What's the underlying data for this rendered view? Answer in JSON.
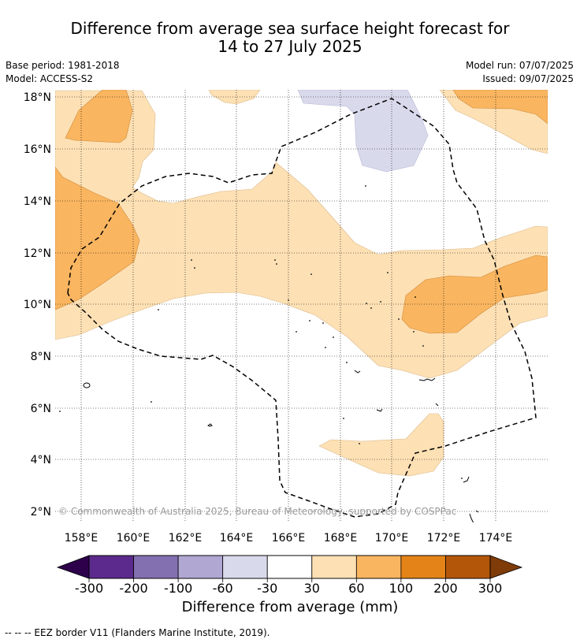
{
  "title": {
    "line1": "Difference from average sea surface height forecast for",
    "line2": "14 to 27 July 2025"
  },
  "meta": {
    "base_period": "Base period: 1981-2018",
    "model": "Model: ACCESS-S2",
    "model_run": "Model run: 07/07/2025",
    "issued": "Issued: 09/07/2025"
  },
  "map": {
    "lon_range": [
      157,
      176
    ],
    "lat_range": [
      1.5,
      18.2
    ],
    "lon_ticks": [
      "158°E",
      "160°E",
      "162°E",
      "164°E",
      "166°E",
      "168°E",
      "170°E",
      "172°E",
      "174°E"
    ],
    "lat_ticks": [
      "2°N",
      "4°N",
      "6°N",
      "8°N",
      "10°N",
      "12°N",
      "14°N",
      "16°N",
      "18°N"
    ],
    "copyright": "© Commonwealth of Australia 2025, Bureau of Meteorology, supported by COSPPac",
    "grid": true
  },
  "colorbar": {
    "ticks": [
      "-300",
      "-200",
      "-100",
      "-60",
      "-30",
      "30",
      "60",
      "100",
      "200",
      "300"
    ],
    "colors": [
      "#5b2a8c",
      "#8370b0",
      "#b1a7d3",
      "#d9d9ec",
      "#ffffff",
      "#fde0b4",
      "#f9b560",
      "#e38318",
      "#b4560a"
    ],
    "extend_low": "#2d004b",
    "extend_high": "#7f3b08",
    "label": "Difference from average (mm)"
  },
  "footnote": "--  --  -- EEZ border V11 (Flanders Marine Institute, 2019)."
}
